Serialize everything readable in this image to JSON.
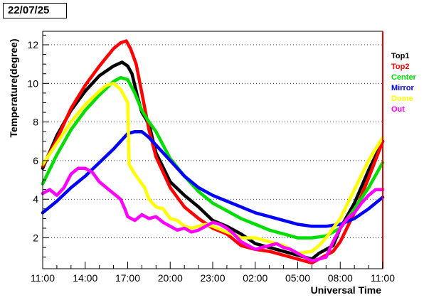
{
  "date_label": "22/07/25",
  "chart_data": {
    "type": "line",
    "xlabel": "Universal Time",
    "ylabel": "Temperature(degree)",
    "x_ticks": [
      "11:00",
      "14:00",
      "17:00",
      "20:00",
      "23:00",
      "02:00",
      "05:00",
      "08:00",
      "11:00"
    ],
    "x_range_hours": [
      0,
      24
    ],
    "ylim": [
      0.4,
      12.7
    ],
    "y_ticks": [
      2,
      4,
      6,
      8,
      10,
      12
    ],
    "grid": "horizontal-dotted",
    "legend_position": "right",
    "series": [
      {
        "name": "Top1",
        "color": "#000000",
        "x": [
          0,
          1,
          2,
          3,
          4,
          5,
          5.6,
          6,
          6.3,
          6.7,
          7,
          7.5,
          8,
          9,
          10,
          11,
          12,
          13,
          14,
          15,
          16,
          17,
          18,
          19,
          19.5,
          20,
          20.5,
          21,
          22,
          23,
          24
        ],
        "y": [
          5.6,
          7.3,
          8.6,
          9.6,
          10.4,
          10.9,
          11.1,
          10.9,
          10.5,
          9.3,
          8.5,
          7.9,
          6.4,
          4.9,
          4.2,
          3.6,
          2.9,
          2.6,
          2.2,
          1.7,
          1.5,
          1.3,
          1.1,
          0.9,
          1.2,
          1.4,
          1.6,
          2.5,
          3.8,
          5.5,
          7.0
        ]
      },
      {
        "name": "Top2",
        "color": "#ff0000",
        "x": [
          0,
          1,
          2,
          3,
          4,
          5,
          5.5,
          5.9,
          6.2,
          6.6,
          7,
          7.5,
          8,
          9,
          10,
          11,
          12,
          13,
          14,
          15,
          16,
          17,
          18,
          19,
          19.5,
          20,
          20.5,
          21,
          22,
          23,
          24
        ],
        "y": [
          5.7,
          7.1,
          8.7,
          9.9,
          10.9,
          11.8,
          12.1,
          12.2,
          11.8,
          11.0,
          9.5,
          7.6,
          6.2,
          4.6,
          3.6,
          3.0,
          2.5,
          2.2,
          1.6,
          1.4,
          1.3,
          1.1,
          0.9,
          0.7,
          0.9,
          1.1,
          1.3,
          1.8,
          3.3,
          5.1,
          7.0
        ]
      },
      {
        "name": "Center",
        "color": "#00dd00",
        "x": [
          0,
          1,
          2,
          3,
          4,
          5,
          5.5,
          6,
          6.5,
          7,
          7.5,
          8,
          8.5,
          9,
          10,
          11,
          12,
          13,
          14,
          15,
          16,
          17,
          18,
          19,
          20,
          21,
          22,
          23,
          24
        ],
        "y": [
          4.8,
          6.3,
          7.6,
          8.6,
          9.4,
          10.1,
          10.3,
          10.2,
          9.5,
          8.6,
          8.0,
          7.5,
          6.8,
          6.1,
          5.2,
          4.4,
          3.8,
          3.4,
          3.0,
          2.7,
          2.4,
          2.2,
          2.0,
          2.0,
          2.1,
          2.5,
          3.5,
          4.6,
          5.9
        ]
      },
      {
        "name": "Mirror",
        "color": "#0000ff",
        "x": [
          0,
          1,
          2,
          3,
          4,
          5,
          5.5,
          6,
          6.5,
          7,
          7.5,
          8,
          9,
          10,
          11,
          12,
          13,
          14,
          15,
          16,
          17,
          18,
          19,
          20,
          21,
          22,
          23,
          24
        ],
        "y": [
          3.3,
          3.9,
          4.6,
          5.2,
          5.9,
          6.6,
          7.0,
          7.4,
          7.5,
          7.5,
          7.2,
          6.8,
          6.0,
          5.2,
          4.6,
          4.2,
          3.9,
          3.6,
          3.3,
          3.1,
          2.9,
          2.7,
          2.6,
          2.6,
          2.7,
          3.0,
          3.5,
          4.1
        ]
      },
      {
        "name": "Dome",
        "color": "#ffff00",
        "x": [
          0,
          1,
          2,
          3,
          4,
          4.5,
          5,
          5.5,
          6,
          6.1,
          6.5,
          7,
          7.2,
          7.5,
          8,
          8.5,
          9,
          9.5,
          10,
          10.5,
          11,
          11.5,
          12,
          13,
          14,
          15,
          16,
          17,
          17.5,
          18,
          19,
          19.5,
          20,
          21,
          22,
          23,
          24
        ],
        "y": [
          5.8,
          6.9,
          8.0,
          8.9,
          9.6,
          9.9,
          10.0,
          9.7,
          9.0,
          5.8,
          5.3,
          4.8,
          4.6,
          4.0,
          3.6,
          3.5,
          3.0,
          2.9,
          2.6,
          2.5,
          2.6,
          2.7,
          2.6,
          2.3,
          2.0,
          2.0,
          1.8,
          1.6,
          1.4,
          1.2,
          1.3,
          1.6,
          2.0,
          3.0,
          4.5,
          6.0,
          7.2
        ]
      },
      {
        "name": "Out",
        "color": "#ff00ff",
        "x": [
          0,
          0.5,
          1,
          1.5,
          2,
          2.5,
          3,
          3.5,
          4,
          4.5,
          5,
          5.5,
          5.8,
          6,
          6.5,
          7,
          7.5,
          8,
          8.5,
          9,
          9.5,
          10,
          10.5,
          11,
          11.5,
          12,
          12.5,
          13,
          13.5,
          14,
          14.5,
          15,
          15.5,
          16,
          16.5,
          17,
          17.5,
          18,
          18.5,
          19,
          19.5,
          20,
          20.5,
          21,
          21.5,
          22,
          22.5,
          23,
          23.5,
          24
        ],
        "y": [
          4.3,
          4.5,
          4.2,
          4.6,
          5.3,
          5.6,
          5.6,
          5.4,
          4.9,
          4.6,
          4.3,
          4.0,
          3.5,
          3.1,
          2.9,
          3.2,
          3.0,
          3.1,
          2.8,
          2.6,
          2.4,
          2.5,
          2.3,
          2.4,
          2.6,
          2.8,
          2.7,
          2.5,
          2.2,
          1.8,
          1.6,
          1.4,
          1.5,
          1.6,
          1.7,
          1.5,
          1.4,
          1.2,
          1.0,
          0.8,
          0.9,
          1.0,
          1.8,
          2.5,
          3.0,
          3.3,
          3.8,
          4.2,
          4.5,
          4.5
        ]
      }
    ]
  }
}
